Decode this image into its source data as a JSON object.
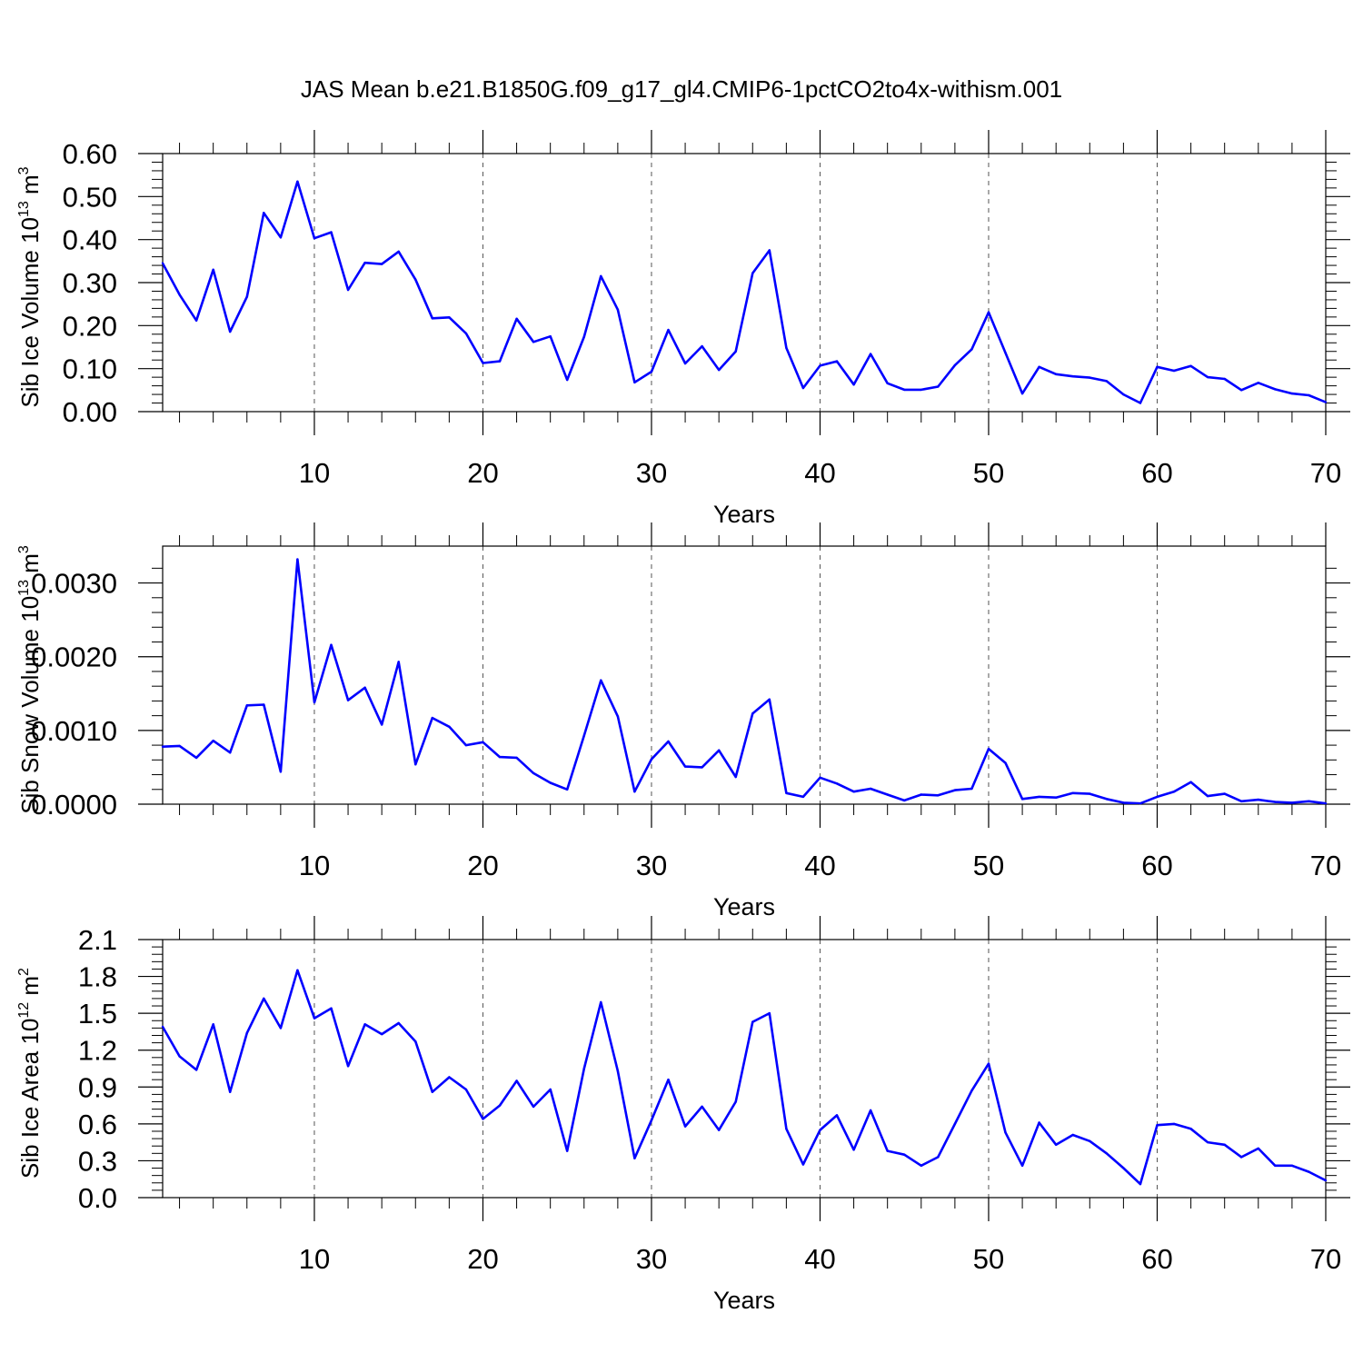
{
  "chart_data": [
    {
      "type": "line",
      "title": "JAS Mean b.e21.B1850G.f09_g17_gl4.CMIP6-1pctCO2to4x-withism.001",
      "xlabel": "Years",
      "ylabel": "Sib Ice Volume 10",
      "ylabel_exp": "13",
      "ylabel_unit": " m",
      "ylabel_unit_exp": "3",
      "xlim": [
        1,
        70
      ],
      "ylim": [
        0,
        0.6
      ],
      "xticks": [
        10,
        20,
        30,
        40,
        50,
        60,
        70
      ],
      "xtick_labels": [
        "10",
        "20",
        "30",
        "40",
        "50",
        "60",
        "70"
      ],
      "yticks": [
        0,
        0.1,
        0.2,
        0.3,
        0.4,
        0.5,
        0.6
      ],
      "ytick_labels": [
        "0.00",
        "0.10",
        "0.20",
        "0.30",
        "0.40",
        "0.50",
        "0.60"
      ],
      "grid": "dashed vertical lines at major x ticks",
      "color": "#0000ff",
      "x_start": 1,
      "values": [
        0.345,
        0.272,
        0.212,
        0.33,
        0.186,
        0.267,
        0.462,
        0.405,
        0.535,
        0.403,
        0.417,
        0.283,
        0.346,
        0.343,
        0.372,
        0.307,
        0.217,
        0.219,
        0.182,
        0.113,
        0.117,
        0.216,
        0.162,
        0.175,
        0.074,
        0.174,
        0.315,
        0.237,
        0.068,
        0.093,
        0.19,
        0.112,
        0.152,
        0.097,
        0.14,
        0.322,
        0.375,
        0.148,
        0.055,
        0.107,
        0.117,
        0.063,
        0.134,
        0.066,
        0.051,
        0.051,
        0.058,
        0.108,
        0.145,
        0.231,
        0.137,
        0.042,
        0.104,
        0.087,
        0.082,
        0.079,
        0.071,
        0.04,
        0.02,
        0.104,
        0.095,
        0.106,
        0.08,
        0.076,
        0.05,
        0.067,
        0.052,
        0.042,
        0.038,
        0.022
      ]
    },
    {
      "type": "line",
      "xlabel": "Years",
      "ylabel": "Sib Snow Volume 10",
      "ylabel_exp": "13",
      "ylabel_unit": " m",
      "ylabel_unit_exp": "3",
      "xlim": [
        1,
        70
      ],
      "ylim": [
        0,
        0.0035
      ],
      "xticks": [
        10,
        20,
        30,
        40,
        50,
        60,
        70
      ],
      "xtick_labels": [
        "10",
        "20",
        "30",
        "40",
        "50",
        "60",
        "70"
      ],
      "yticks": [
        0,
        0.001,
        0.002,
        0.003
      ],
      "ytick_labels": [
        "0.0000",
        "0.0010",
        "0.0020",
        "0.0030"
      ],
      "grid": "dashed vertical lines at major x ticks",
      "color": "#0000ff",
      "x_start": 1,
      "values": [
        0.00078,
        0.00079,
        0.00063,
        0.00086,
        0.0007,
        0.00134,
        0.00135,
        0.00044,
        0.00332,
        0.00138,
        0.00216,
        0.00141,
        0.00158,
        0.00108,
        0.00193,
        0.00054,
        0.00117,
        0.00105,
        0.0008,
        0.00084,
        0.00064,
        0.00063,
        0.00042,
        0.00029,
        0.0002,
        0.00093,
        0.00168,
        0.00119,
        0.00017,
        0.00061,
        0.00085,
        0.00051,
        0.0005,
        0.00073,
        0.00037,
        0.00123,
        0.00142,
        0.00015,
        0.0001,
        0.00036,
        0.00028,
        0.00017,
        0.00021,
        0.00013,
        5e-05,
        0.00013,
        0.00012,
        0.00019,
        0.00021,
        0.00075,
        0.00056,
        7e-05,
        0.0001,
        9e-05,
        0.00015,
        0.00014,
        7e-05,
        2e-05,
        1e-05,
        0.0001,
        0.00017,
        0.0003,
        0.00011,
        0.00014,
        4e-05,
        6e-05,
        3e-05,
        2e-05,
        4e-05,
        1e-05
      ]
    },
    {
      "type": "line",
      "xlabel": "Years",
      "ylabel": "Sib Ice Area 10",
      "ylabel_exp": "12",
      "ylabel_unit": " m",
      "ylabel_unit_exp": "2",
      "xlim": [
        1,
        70
      ],
      "ylim": [
        0,
        2.1
      ],
      "xticks": [
        10,
        20,
        30,
        40,
        50,
        60,
        70
      ],
      "xtick_labels": [
        "10",
        "20",
        "30",
        "40",
        "50",
        "60",
        "70"
      ],
      "yticks": [
        0,
        0.3,
        0.6,
        0.9,
        1.2,
        1.5,
        1.8,
        2.1
      ],
      "ytick_labels": [
        "0.0",
        "0.3",
        "0.6",
        "0.9",
        "1.2",
        "1.5",
        "1.8",
        "2.1"
      ],
      "grid": "dashed vertical lines at major x ticks",
      "color": "#0000ff",
      "x_start": 1,
      "values": [
        1.39,
        1.15,
        1.04,
        1.41,
        0.86,
        1.34,
        1.62,
        1.38,
        1.85,
        1.46,
        1.54,
        1.07,
        1.41,
        1.33,
        1.42,
        1.27,
        0.86,
        0.98,
        0.88,
        0.64,
        0.75,
        0.95,
        0.74,
        0.88,
        0.38,
        1.05,
        1.59,
        1.03,
        0.32,
        0.63,
        0.96,
        0.58,
        0.74,
        0.55,
        0.78,
        1.43,
        1.5,
        0.56,
        0.27,
        0.55,
        0.67,
        0.39,
        0.71,
        0.38,
        0.35,
        0.26,
        0.33,
        0.6,
        0.87,
        1.09,
        0.53,
        0.26,
        0.61,
        0.43,
        0.51,
        0.46,
        0.36,
        0.24,
        0.11,
        0.59,
        0.6,
        0.56,
        0.45,
        0.43,
        0.33,
        0.4,
        0.26,
        0.26,
        0.21,
        0.14
      ]
    }
  ]
}
